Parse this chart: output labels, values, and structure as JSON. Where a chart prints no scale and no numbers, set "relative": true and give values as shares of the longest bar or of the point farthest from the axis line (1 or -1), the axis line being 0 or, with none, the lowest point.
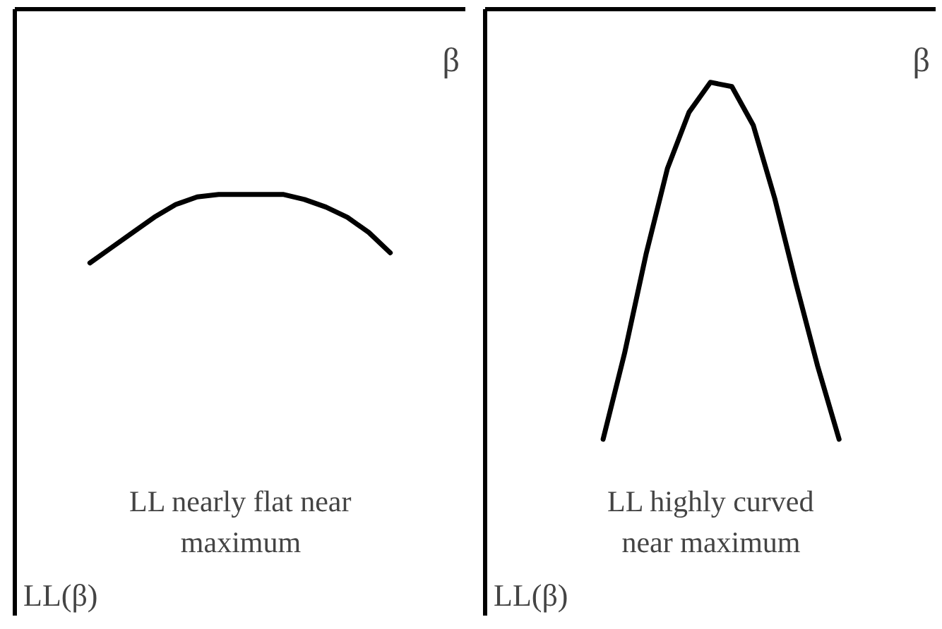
{
  "chart_data": [
    {
      "type": "line",
      "relative": true,
      "xlabel": "β",
      "color": "#000000",
      "categories": [
        null,
        null,
        null,
        null,
        null,
        null,
        null,
        null,
        null,
        null,
        null,
        null,
        null,
        null,
        null,
        null,
        null,
        null,
        null,
        null,
        null
      ],
      "values": [
        null,
        null,
        null,
        -1.0,
        -0.94,
        -0.88,
        -0.82,
        -0.77,
        -0.74,
        -0.73,
        -0.73,
        -0.73,
        -0.73,
        -0.75,
        -0.78,
        -0.82,
        -0.88,
        -0.96,
        null,
        null,
        null
      ],
      "annotations": [
        "LL(β)",
        "LL nearly flat near maximum"
      ]
    },
    {
      "type": "line",
      "relative": true,
      "xlabel": "β",
      "color": "#000000",
      "categories": [
        null,
        null,
        null,
        null,
        null,
        null,
        null,
        null,
        null,
        null,
        null,
        null,
        null,
        null,
        null,
        null,
        null,
        null,
        null,
        null,
        null
      ],
      "values": [
        null,
        null,
        null,
        null,
        null,
        -1.0,
        -0.8,
        -0.57,
        -0.37,
        -0.24,
        -0.17,
        -0.18,
        -0.27,
        -0.44,
        -0.64,
        -0.83,
        -1.0,
        null,
        null,
        null,
        null
      ],
      "annotations": [
        "LL(β)",
        "LL highly curved near maximum"
      ]
    }
  ]
}
